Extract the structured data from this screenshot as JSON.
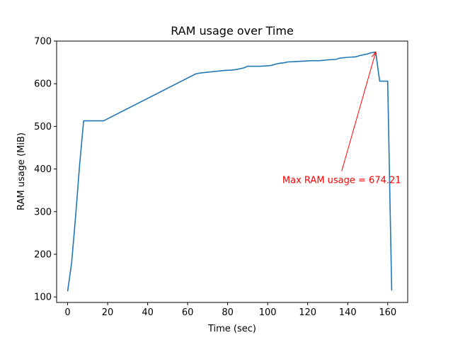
{
  "chart_data": {
    "type": "line",
    "title": "RAM usage over Time",
    "xlabel": "Time (sec)",
    "ylabel": "RAM usage (MiB)",
    "xlim": [
      -5.5,
      170
    ],
    "ylim": [
      87,
      700
    ],
    "xticks": [
      0,
      20,
      40,
      60,
      80,
      100,
      120,
      140,
      160
    ],
    "yticks": [
      100,
      200,
      300,
      400,
      500,
      600,
      700
    ],
    "grid": false,
    "legend": "none",
    "series": [
      {
        "color": "#1f77b4",
        "x": [
          0,
          2,
          4,
          6,
          8,
          18,
          64,
          66,
          70,
          74,
          78,
          82,
          84,
          86,
          88,
          90,
          96,
          100,
          102,
          104,
          106,
          108,
          110,
          114,
          118,
          122,
          126,
          130,
          134,
          136,
          140,
          144,
          146,
          150,
          152,
          154,
          156,
          160,
          162
        ],
        "y": [
          113,
          180,
          290,
          410,
          513,
          513,
          623,
          625,
          627,
          629,
          631,
          632,
          633,
          635,
          637,
          641,
          641,
          642,
          643,
          646,
          648,
          649,
          651,
          652,
          653,
          654,
          654,
          656,
          657,
          660,
          662,
          663,
          666,
          670,
          673,
          674.21,
          606,
          606,
          115
        ]
      }
    ],
    "annotation": {
      "text": "Max RAM usage = 674.21",
      "color": "#ff0000",
      "point": [
        154,
        674.21
      ],
      "text_at": [
        137,
        375
      ]
    }
  }
}
